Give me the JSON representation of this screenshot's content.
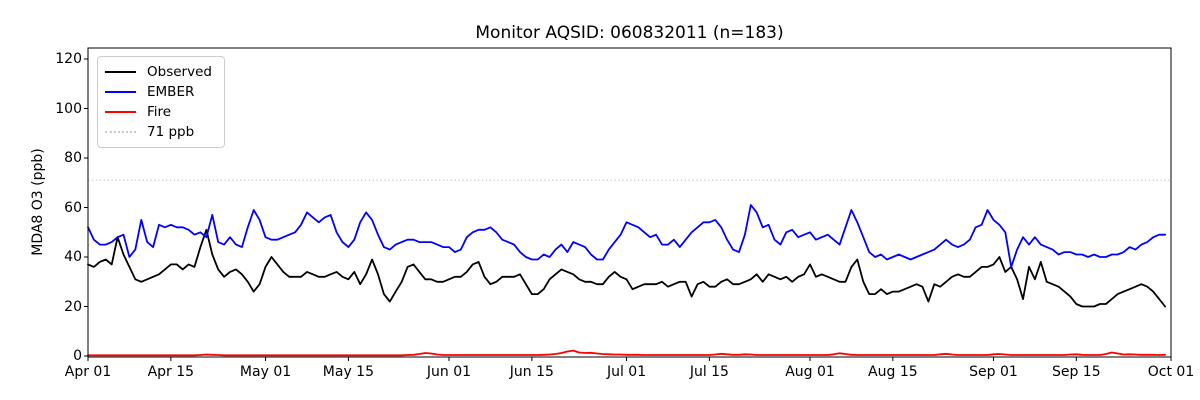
{
  "chart_data": {
    "type": "line",
    "title": "Monitor AQSID: 060832011 (n=183)",
    "ylabel": "MDA8 O3 (ppb)",
    "xlabel": "",
    "n_points": 183,
    "x_start_label": "Apr 01",
    "x_end_label": "Oct 01",
    "x_tick_labels": [
      "Apr 01",
      "Apr 15",
      "May 01",
      "May 15",
      "Jun 01",
      "Jun 15",
      "Jul 01",
      "Jul 15",
      "Aug 01",
      "Aug 15",
      "Sep 01",
      "Sep 15",
      "Oct 01"
    ],
    "x_tick_days": [
      0,
      14,
      30,
      44,
      61,
      75,
      91,
      105,
      122,
      136,
      153,
      167,
      183
    ],
    "x_range_days": 183,
    "y_ticks": [
      0,
      20,
      40,
      60,
      80,
      100,
      120
    ],
    "ylim": [
      0,
      124
    ],
    "grid": false,
    "legend_position": "upper-left",
    "threshold": {
      "label": "71 ppb",
      "value": 71,
      "color": "#c9c9c9",
      "style": "dotted"
    },
    "series": [
      {
        "name": "Observed",
        "color": "#000000",
        "values": [
          37,
          36,
          38,
          39,
          37,
          48,
          41,
          36,
          31,
          30,
          31,
          32,
          33,
          35,
          37,
          37,
          35,
          37,
          36,
          44,
          51,
          41,
          35,
          32,
          34,
          35,
          33,
          30,
          26,
          29,
          36,
          40,
          37,
          34,
          32,
          32,
          32,
          34,
          33,
          32,
          32,
          33,
          34,
          32,
          31,
          34,
          29,
          33,
          39,
          33,
          25,
          22,
          26,
          30,
          36,
          37,
          34,
          31,
          31,
          30,
          30,
          31,
          32,
          32,
          34,
          37,
          38,
          32,
          29,
          30,
          32,
          32,
          32,
          33,
          29,
          25,
          25,
          27,
          31,
          33,
          35,
          34,
          33,
          31,
          30,
          30,
          29,
          29,
          32,
          34,
          32,
          31,
          27,
          28,
          29,
          29,
          29,
          30,
          28,
          29,
          30,
          30,
          24,
          29,
          30,
          28,
          28,
          30,
          31,
          29,
          29,
          30,
          31,
          33,
          30,
          33,
          32,
          31,
          32,
          30,
          32,
          33,
          37,
          32,
          33,
          32,
          31,
          30,
          30,
          36,
          39,
          30,
          25,
          25,
          27,
          25,
          26,
          26,
          27,
          28,
          29,
          28,
          22,
          29,
          28,
          30,
          32,
          33,
          32,
          32,
          34,
          36,
          36,
          37,
          40,
          34,
          36,
          31,
          23,
          36,
          31,
          38,
          30,
          29,
          28,
          26,
          24,
          21,
          20,
          20,
          20,
          21,
          21,
          23,
          25,
          26,
          27,
          28,
          29,
          28,
          26,
          23,
          20
        ]
      },
      {
        "name": "EMBER",
        "color": "#0000ff",
        "values": [
          52,
          47,
          45,
          45,
          46,
          48,
          49,
          40,
          43,
          55,
          46,
          44,
          53,
          52,
          53,
          52,
          52,
          51,
          49,
          50,
          48,
          57,
          46,
          45,
          48,
          45,
          44,
          52,
          59,
          55,
          48,
          47,
          47,
          48,
          49,
          50,
          53,
          58,
          56,
          54,
          56,
          57,
          50,
          46,
          44,
          47,
          54,
          58,
          55,
          49,
          44,
          43,
          45,
          46,
          47,
          47,
          46,
          46,
          46,
          45,
          44,
          44,
          42,
          43,
          48,
          50,
          51,
          51,
          52,
          50,
          47,
          46,
          45,
          42,
          40,
          39,
          39,
          41,
          40,
          43,
          45,
          42,
          46,
          45,
          44,
          41,
          39,
          39,
          43,
          46,
          49,
          54,
          53,
          52,
          50,
          48,
          49,
          45,
          45,
          47,
          44,
          47,
          50,
          52,
          54,
          54,
          55,
          52,
          47,
          43,
          42,
          49,
          61,
          58,
          52,
          53,
          47,
          45,
          50,
          51,
          48,
          49,
          50,
          47,
          48,
          49,
          47,
          45,
          52,
          59,
          54,
          48,
          42,
          40,
          41,
          39,
          40,
          41,
          40,
          39,
          40,
          41,
          42,
          43,
          45,
          47,
          45,
          44,
          45,
          47,
          52,
          53,
          59,
          55,
          53,
          50,
          36,
          43,
          48,
          45,
          48,
          45,
          44,
          43,
          41,
          42,
          42,
          41,
          41,
          40,
          41,
          40,
          40,
          41,
          41,
          42,
          44,
          43,
          45,
          46,
          48,
          49,
          49
        ]
      },
      {
        "name": "Fire",
        "color": "#ff0000",
        "values": [
          0.3,
          0.3,
          0.3,
          0.3,
          0.3,
          0.3,
          0.3,
          0.3,
          0.3,
          0.3,
          0.3,
          0.3,
          0.3,
          0.3,
          0.3,
          0.3,
          0.3,
          0.3,
          0.3,
          0.4,
          0.6,
          0.5,
          0.4,
          0.3,
          0.3,
          0.3,
          0.3,
          0.3,
          0.3,
          0.3,
          0.3,
          0.3,
          0.3,
          0.3,
          0.3,
          0.3,
          0.3,
          0.3,
          0.3,
          0.3,
          0.3,
          0.3,
          0.3,
          0.3,
          0.3,
          0.3,
          0.3,
          0.3,
          0.3,
          0.3,
          0.3,
          0.3,
          0.3,
          0.3,
          0.4,
          0.5,
          0.8,
          1.2,
          1.0,
          0.6,
          0.4,
          0.4,
          0.4,
          0.4,
          0.4,
          0.4,
          0.4,
          0.4,
          0.4,
          0.4,
          0.4,
          0.4,
          0.4,
          0.4,
          0.4,
          0.4,
          0.4,
          0.5,
          0.6,
          0.8,
          1.2,
          1.8,
          2.2,
          1.4,
          1.2,
          1.3,
          1.0,
          0.8,
          0.7,
          0.6,
          0.6,
          0.5,
          0.5,
          0.5,
          0.4,
          0.4,
          0.4,
          0.4,
          0.4,
          0.4,
          0.4,
          0.4,
          0.4,
          0.4,
          0.4,
          0.4,
          0.6,
          0.9,
          0.7,
          0.5,
          0.5,
          0.7,
          0.6,
          0.4,
          0.4,
          0.4,
          0.4,
          0.4,
          0.4,
          0.4,
          0.4,
          0.4,
          0.4,
          0.4,
          0.4,
          0.4,
          0.7,
          1.1,
          0.8,
          0.5,
          0.4,
          0.4,
          0.4,
          0.4,
          0.4,
          0.4,
          0.4,
          0.4,
          0.4,
          0.4,
          0.4,
          0.4,
          0.4,
          0.4,
          0.7,
          0.9,
          0.6,
          0.4,
          0.4,
          0.4,
          0.4,
          0.4,
          0.4,
          0.7,
          0.8,
          0.6,
          0.4,
          0.4,
          0.4,
          0.4,
          0.4,
          0.4,
          0.4,
          0.4,
          0.4,
          0.4,
          0.6,
          0.7,
          0.5,
          0.4,
          0.4,
          0.4,
          0.8,
          1.4,
          1.0,
          0.6,
          0.7,
          0.6,
          0.5,
          0.5,
          0.5,
          0.4,
          0.5
        ]
      }
    ]
  }
}
